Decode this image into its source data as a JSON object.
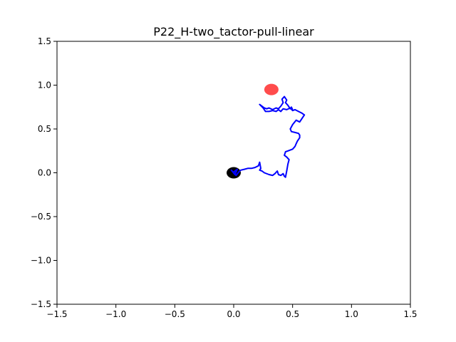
{
  "chart_data": {
    "type": "line",
    "title": "P22_H-two_tactor-pull-linear",
    "xlabel": "",
    "ylabel": "",
    "xlim": [
      -1.5,
      1.5
    ],
    "ylim": [
      -1.5,
      1.5
    ],
    "xticks": [
      -1.5,
      -1.0,
      -0.5,
      0.0,
      0.5,
      1.0,
      1.5
    ],
    "yticks": [
      -1.5,
      -1.0,
      -0.5,
      0.0,
      0.5,
      1.0,
      1.5
    ],
    "xtick_labels": [
      "−1.5",
      "−1.0",
      "−0.5",
      "0.0",
      "0.5",
      "1.0",
      "1.5"
    ],
    "ytick_labels": [
      "−1.5",
      "−1.0",
      "−0.5",
      "0.0",
      "0.5",
      "1.0",
      "1.5"
    ],
    "grid": false,
    "trajectory": {
      "color": "#0000ff",
      "x": [
        0.0,
        -0.02,
        0.01,
        0.03,
        0.0,
        0.02,
        0.05,
        0.06,
        0.09,
        0.12,
        0.15,
        0.18,
        0.21,
        0.22,
        0.23,
        0.22,
        0.24,
        0.26,
        0.3,
        0.33,
        0.35,
        0.37,
        0.38,
        0.4,
        0.42,
        0.43,
        0.44,
        0.45,
        0.46,
        0.47,
        0.45,
        0.43,
        0.44,
        0.46,
        0.5,
        0.52,
        0.53,
        0.54,
        0.55,
        0.56,
        0.56,
        0.55,
        0.52,
        0.49,
        0.48,
        0.5,
        0.53,
        0.56,
        0.58,
        0.59,
        0.6,
        0.58,
        0.55,
        0.52,
        0.5,
        0.48,
        0.45,
        0.42,
        0.4,
        0.38,
        0.36,
        0.33,
        0.3,
        0.27,
        0.25,
        0.22,
        0.24,
        0.26,
        0.28,
        0.3,
        0.33,
        0.36,
        0.38,
        0.4,
        0.42,
        0.41,
        0.43,
        0.45,
        0.44,
        0.46,
        0.48,
        0.49,
        0.5
      ],
      "y": [
        0.0,
        0.03,
        -0.02,
        0.04,
        0.01,
        -0.03,
        0.02,
        0.03,
        0.04,
        0.05,
        0.05,
        0.06,
        0.08,
        0.12,
        0.05,
        0.03,
        0.02,
        0.0,
        -0.02,
        -0.03,
        -0.01,
        0.02,
        -0.02,
        -0.03,
        -0.01,
        -0.04,
        -0.05,
        0.02,
        0.1,
        0.15,
        0.18,
        0.2,
        0.24,
        0.25,
        0.27,
        0.3,
        0.33,
        0.36,
        0.38,
        0.4,
        0.43,
        0.45,
        0.46,
        0.47,
        0.5,
        0.55,
        0.6,
        0.58,
        0.62,
        0.64,
        0.66,
        0.68,
        0.7,
        0.72,
        0.71,
        0.74,
        0.72,
        0.73,
        0.7,
        0.72,
        0.7,
        0.71,
        0.7,
        0.7,
        0.74,
        0.78,
        0.76,
        0.74,
        0.73,
        0.74,
        0.72,
        0.74,
        0.73,
        0.76,
        0.8,
        0.84,
        0.87,
        0.83,
        0.8,
        0.77,
        0.73,
        0.75,
        0.72
      ]
    },
    "start_marker": {
      "x": 0.0,
      "y": 0.0,
      "color": "#000000"
    },
    "target_marker": {
      "x": 0.32,
      "y": 0.95,
      "color": "#ff0000",
      "alpha": 0.7
    }
  }
}
